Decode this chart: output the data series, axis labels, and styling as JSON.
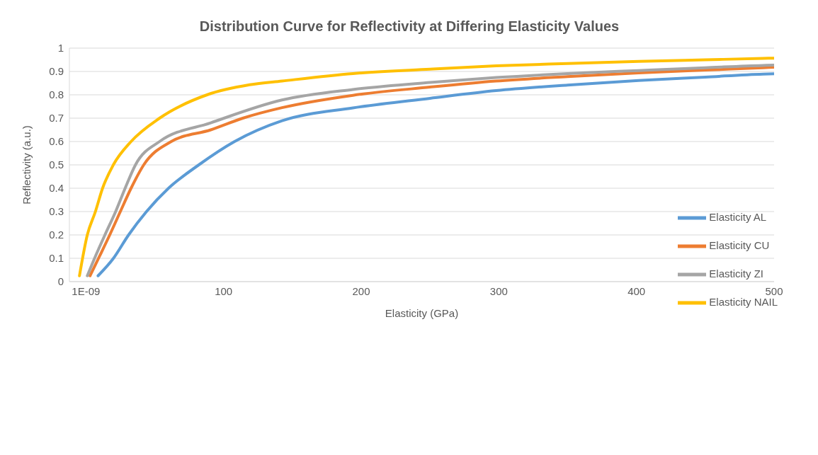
{
  "chart_data": {
    "type": "line",
    "title": "Distribution Curve for Reflectivity at Differing Elasticity Values",
    "xlabel": "Elasticity (GPa)",
    "ylabel": "Reflectivity (a.u.)",
    "xlim": [
      -12,
      500
    ],
    "xticks": [
      {
        "value": 1e-09,
        "label": "1E-09"
      },
      100,
      200,
      300,
      400,
      500
    ],
    "ylim": [
      0,
      1
    ],
    "yticks": [
      0,
      0.1,
      0.2,
      0.3,
      0.4,
      0.5,
      0.6,
      0.7,
      0.8,
      0.9,
      1
    ],
    "grid": "y",
    "legend": "bottom right",
    "marker": "none",
    "line_style": "solid",
    "series": [
      {
        "name": "Elasticity AL",
        "color": "#5b9bd5",
        "x": [
          8.8,
          20,
          31,
          44,
          60,
          82,
          108,
          142.5,
          194,
          250,
          298,
          350,
          401.6,
          450,
          492,
          500
        ],
        "values": [
          0.025,
          0.1,
          0.2,
          0.3,
          0.4,
          0.5,
          0.6,
          0.689,
          0.744,
          0.785,
          0.818,
          0.842,
          0.861,
          0.876,
          0.889,
          0.89
        ]
      },
      {
        "name": "Elasticity CU",
        "color": "#ed7d31",
        "x": [
          3,
          10,
          17.3,
          25,
          32.8,
          42,
          62,
          90.7,
          114,
          142.5,
          194,
          250,
          298,
          350,
          401.6,
          450,
          492,
          500
        ],
        "values": [
          0.025,
          0.11,
          0.2,
          0.3,
          0.4,
          0.5,
          0.6,
          0.65,
          0.7,
          0.745,
          0.798,
          0.833,
          0.859,
          0.878,
          0.894,
          0.906,
          0.916,
          0.918
        ]
      },
      {
        "name": "Elasticity ZI",
        "color": "#a5a5a5",
        "x": [
          1,
          7,
          13.8,
          21.6,
          28.5,
          36,
          53.5,
          90.7,
          142.5,
          194,
          250,
          298,
          350,
          401.6,
          450,
          492,
          500
        ],
        "values": [
          0.025,
          0.11,
          0.2,
          0.3,
          0.4,
          0.5,
          0.6,
          0.68,
          0.778,
          0.823,
          0.853,
          0.874,
          0.891,
          0.904,
          0.916,
          0.926,
          0.927
        ]
      },
      {
        "name": "Elasticity NAIL",
        "color": "#ffc000",
        "x": [
          -4.7,
          1,
          6.9,
          12.1,
          19.9,
          32.8,
          53.5,
          88,
          119,
          142.5,
          194,
          250,
          298,
          350,
          401.6,
          450,
          492,
          500
        ],
        "values": [
          0.025,
          0.2,
          0.3,
          0.4,
          0.5,
          0.6,
          0.7,
          0.8,
          0.843,
          0.859,
          0.891,
          0.91,
          0.924,
          0.934,
          0.943,
          0.95,
          0.956,
          0.957
        ]
      }
    ]
  }
}
